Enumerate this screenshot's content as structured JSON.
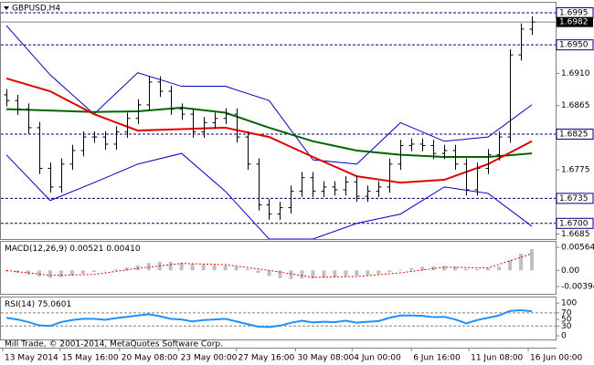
{
  "chart_data": {
    "type": "candlestick",
    "title": "GBPUSD,H4",
    "copyright": "Mill Trade, © 2001-2014, MetaQuotes Software Corp.",
    "xlim": [
      -0.5,
      50.17
    ],
    "xticks": [
      {
        "value": -0.33,
        "label": "13 May 2014"
      },
      {
        "value": 4.92,
        "label": "15 May 16:00"
      },
      {
        "value": 10.33,
        "label": "20 May 08:00"
      },
      {
        "value": 15.75,
        "label": "23 May 00:00"
      },
      {
        "value": 21,
        "label": "27 May 16:00"
      },
      {
        "value": 26.42,
        "label": "30 May 08:00"
      },
      {
        "value": 31.58,
        "label": "4 Jun 00:00"
      },
      {
        "value": 37,
        "label": "6 Jun 16:00"
      },
      {
        "value": 42.25,
        "label": "11 Jun 08:00"
      },
      {
        "value": 47.67,
        "label": "16 Jun 00:00"
      }
    ],
    "ylim": [
      1.6678,
      1.7009
    ],
    "yticks": [
      1.6685,
      1.6775,
      1.6865,
      {
        "value": 1.691,
        "label": "1.6910"
      }
    ],
    "levels": [
      1.6995,
      {
        "value": 1.695,
        "label": "1.6950"
      },
      1.6825,
      1.6735,
      {
        "value": 1.67,
        "label": "1.6700"
      }
    ],
    "bid": 1.6982,
    "bar_color": "#000000",
    "open": [
      1.688,
      1.6872,
      1.686,
      1.6834,
      1.6777,
      1.6751,
      1.6783,
      1.6802,
      1.6821,
      1.6821,
      1.6811,
      1.6828,
      1.6847,
      1.6866,
      1.6898,
      1.6885,
      1.686,
      1.6853,
      1.6828,
      1.6841,
      1.6847,
      1.6853,
      1.6821,
      1.6783,
      1.6726,
      1.6713,
      1.6722,
      1.6745,
      1.6764,
      1.6745,
      1.6751,
      1.6747,
      1.6758,
      1.6738,
      1.6745,
      1.6751,
      1.6783,
      1.6809,
      1.6811,
      1.6809,
      1.6798,
      1.6802,
      1.6783,
      1.6747,
      1.6777,
      1.6796,
      1.6821,
      1.6936,
      1.6972
    ],
    "high": [
      1.6888,
      1.688,
      1.6868,
      1.6842,
      1.6785,
      1.6791,
      1.681,
      1.6829,
      1.6829,
      1.6829,
      1.6836,
      1.6855,
      1.6874,
      1.6906,
      1.6906,
      1.6893,
      1.6868,
      1.6861,
      1.6849,
      1.6855,
      1.6861,
      1.6861,
      1.6829,
      1.6791,
      1.6734,
      1.673,
      1.6753,
      1.6772,
      1.6772,
      1.6759,
      1.6759,
      1.6766,
      1.6766,
      1.6753,
      1.6759,
      1.6791,
      1.6817,
      1.6819,
      1.6819,
      1.6817,
      1.681,
      1.681,
      1.6791,
      1.6785,
      1.6804,
      1.6829,
      1.6944,
      1.698,
      1.699
    ],
    "low": [
      1.6864,
      1.6852,
      1.6826,
      1.6769,
      1.6743,
      1.6743,
      1.6775,
      1.6794,
      1.6813,
      1.6803,
      1.6803,
      1.682,
      1.6839,
      1.6858,
      1.6877,
      1.6852,
      1.6845,
      1.682,
      1.682,
      1.6833,
      1.6839,
      1.6813,
      1.6775,
      1.6718,
      1.6705,
      1.6705,
      1.6714,
      1.6737,
      1.6737,
      1.6737,
      1.6739,
      1.6739,
      1.673,
      1.673,
      1.6737,
      1.6743,
      1.6775,
      1.6801,
      1.6801,
      1.679,
      1.679,
      1.6775,
      1.6739,
      1.6739,
      1.6769,
      1.6788,
      1.6813,
      1.6928,
      1.6964
    ],
    "close": [
      1.6872,
      1.686,
      1.6834,
      1.6777,
      1.6751,
      1.6783,
      1.6802,
      1.6821,
      1.6821,
      1.6811,
      1.6828,
      1.6847,
      1.6866,
      1.6898,
      1.6885,
      1.686,
      1.6853,
      1.6828,
      1.6841,
      1.6847,
      1.6853,
      1.6821,
      1.6783,
      1.6726,
      1.6713,
      1.6722,
      1.6745,
      1.6764,
      1.6745,
      1.6751,
      1.6747,
      1.6758,
      1.6738,
      1.6745,
      1.6751,
      1.6783,
      1.6809,
      1.6811,
      1.6809,
      1.6798,
      1.6802,
      1.6783,
      1.6747,
      1.6777,
      1.6796,
      1.6821,
      1.6936,
      1.6972,
      1.6982
    ],
    "lines": [
      {
        "color": "#0000c0",
        "width": 1,
        "x": [
          0,
          4,
          8,
          12,
          16,
          20,
          24,
          28,
          32,
          36,
          40,
          44,
          48
        ],
        "values": [
          1.6977,
          1.6908,
          1.6853,
          1.6911,
          1.6892,
          1.6892,
          1.6872,
          1.6789,
          1.6783,
          1.6841,
          1.6815,
          1.6821,
          1.6866
        ]
      },
      {
        "color": "#0000c0",
        "width": 1,
        "x": [
          0,
          4,
          8,
          12,
          16,
          20,
          24,
          28,
          32,
          36,
          40,
          44,
          48
        ],
        "values": [
          1.6796,
          1.6732,
          1.6757,
          1.6783,
          1.6798,
          1.6745,
          1.6678,
          1.6678,
          1.67,
          1.6713,
          1.6751,
          1.6742,
          1.6696
        ]
      },
      {
        "color": "#006400",
        "width": 2,
        "x": [
          0,
          4,
          8,
          12,
          16,
          20,
          24,
          28,
          32,
          36,
          40,
          44,
          48
        ],
        "values": [
          1.686,
          1.6858,
          1.6856,
          1.6857,
          1.6862,
          1.6855,
          1.6834,
          1.6815,
          1.6802,
          1.6796,
          1.6793,
          1.6793,
          1.6798
        ]
      },
      {
        "color": "#e00000",
        "width": 2,
        "x": [
          0,
          4,
          8,
          12,
          16,
          20,
          24,
          28,
          32,
          36,
          40,
          44,
          48
        ],
        "values": [
          1.6903,
          1.6885,
          1.6853,
          1.683,
          1.6832,
          1.6834,
          1.6821,
          1.6793,
          1.6766,
          1.6757,
          1.6761,
          1.6783,
          1.6815
        ]
      }
    ],
    "macd": {
      "title": "MACD(12,26,9)",
      "readout": [
        "0.00521",
        "0.00410"
      ],
      "ylim": [
        -0.00572,
        0.00698
      ],
      "yticks": [
        0.00564,
        {
          "value": 0,
          "label": "0.00"
        },
        -0.00394
      ],
      "histogram": {
        "color": "#c0c0c0",
        "values": [
          -0.0003,
          -0.0006,
          -0.001,
          -0.0015,
          -0.0018,
          -0.0017,
          -0.0013,
          -0.0008,
          -0.0004,
          0.0,
          0.0003,
          0.0007,
          0.0012,
          0.0018,
          0.0021,
          0.0021,
          0.0019,
          0.0016,
          0.0014,
          0.0013,
          0.0012,
          0.0009,
          0.0003,
          -0.0006,
          -0.0014,
          -0.0019,
          -0.0021,
          -0.002,
          -0.0019,
          -0.0018,
          -0.0016,
          -0.0014,
          -0.0013,
          -0.0011,
          -0.0009,
          -0.0004,
          0.0002,
          0.0006,
          0.0009,
          0.001,
          0.0011,
          0.0009,
          0.0004,
          0.0003,
          0.0005,
          0.0009,
          0.0025,
          0.0041,
          0.00521
        ]
      },
      "signal": {
        "color": "#e00000",
        "x": [
          0,
          4,
          8,
          12,
          16,
          20,
          24,
          28,
          32,
          36,
          40,
          44,
          48
        ],
        "values": [
          0.0,
          -0.0012,
          -0.001,
          0.0005,
          0.0017,
          0.0014,
          0.0,
          -0.0017,
          -0.0015,
          -0.0006,
          0.0008,
          0.0006,
          0.0041
        ]
      }
    },
    "rsi": {
      "title": "RSI(14)",
      "readout": "75.0601",
      "ylim": [
        -11,
        117
      ],
      "yticks": [
        100,
        70,
        50,
        30,
        0
      ],
      "levels": [
        70,
        30
      ],
      "color": "#1e90ff",
      "values": [
        55,
        50,
        42,
        32,
        30,
        42,
        48,
        52,
        52,
        49,
        54,
        58,
        62,
        66,
        60,
        52,
        50,
        44,
        48,
        50,
        52,
        44,
        36,
        28,
        27,
        31,
        40,
        46,
        41,
        43,
        42,
        46,
        40,
        43,
        45,
        55,
        62,
        62,
        61,
        57,
        58,
        50,
        38,
        48,
        55,
        62,
        76,
        78,
        75.0601
      ]
    }
  }
}
